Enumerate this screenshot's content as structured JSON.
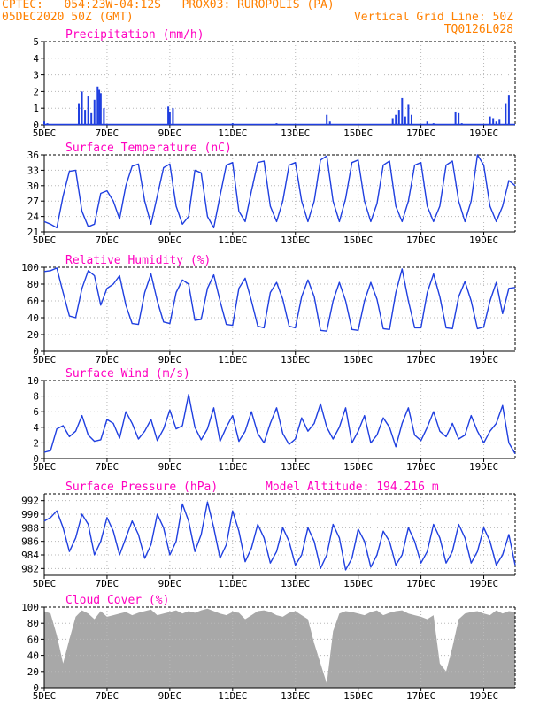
{
  "header": {
    "line1_left": "CPTEC:   054:23W-04:12S   PROX03: RUROPOLIS (PA)",
    "line2_left": "05DEC2020 50Z (GMT)",
    "line2_right": "Vertical Grid Line: 50Z",
    "line3_right": "TQ0126L028"
  },
  "colors": {
    "header": "#ff8000",
    "panel_title": "#ff00c0",
    "series": "#1f3fe0",
    "cloud_fill": "#a8a8a8",
    "grid": "#b8b8b8"
  },
  "x_axis": {
    "tick_labels": [
      "5DEC",
      "7DEC",
      "9DEC",
      "11DEC",
      "13DEC",
      "15DEC",
      "17DEC",
      "19DEC"
    ],
    "tick_days": [
      5,
      7,
      9,
      11,
      13,
      15,
      17,
      19
    ],
    "range_days": [
      5,
      20
    ]
  },
  "chart_data": [
    {
      "type": "bar",
      "title": "Precipitation (mm/h)",
      "ylim": [
        0,
        5
      ],
      "yticks": [
        0,
        1,
        2,
        3,
        4,
        5
      ],
      "x_days": [
        5.0,
        5.1,
        6.1,
        6.2,
        6.3,
        6.4,
        6.5,
        6.6,
        6.7,
        6.75,
        6.8,
        6.9,
        8.95,
        9.0,
        9.1,
        11.0,
        12.4,
        14.0,
        14.1,
        16.1,
        16.2,
        16.3,
        16.4,
        16.5,
        16.6,
        16.7,
        17.2,
        17.4,
        18.1,
        18.2,
        18.3,
        19.2,
        19.3,
        19.4,
        19.5,
        19.7,
        19.8
      ],
      "values": [
        0.2,
        0.1,
        1.3,
        2.0,
        0.9,
        1.7,
        0.7,
        1.5,
        2.3,
        2.1,
        1.9,
        1.0,
        1.1,
        0.8,
        1.0,
        0.1,
        0.1,
        0.6,
        0.2,
        0.4,
        0.6,
        0.9,
        1.6,
        0.5,
        1.2,
        0.6,
        0.2,
        0.1,
        0.8,
        0.7,
        0.1,
        0.5,
        0.4,
        0.2,
        0.3,
        1.3,
        1.8
      ]
    },
    {
      "type": "line",
      "title": "Surface Temperature (nC)",
      "ylim": [
        21,
        36
      ],
      "yticks": [
        21,
        24,
        27,
        30,
        33,
        36
      ],
      "x_days": [
        5.0,
        5.2,
        5.4,
        5.6,
        5.8,
        6.0,
        6.2,
        6.4,
        6.6,
        6.8,
        7.0,
        7.2,
        7.4,
        7.6,
        7.8,
        8.0,
        8.2,
        8.4,
        8.6,
        8.8,
        9.0,
        9.2,
        9.4,
        9.6,
        9.8,
        10.0,
        10.2,
        10.4,
        10.6,
        10.8,
        11.0,
        11.2,
        11.4,
        11.6,
        11.8,
        12.0,
        12.2,
        12.4,
        12.6,
        12.8,
        13.0,
        13.2,
        13.4,
        13.6,
        13.8,
        14.0,
        14.2,
        14.4,
        14.6,
        14.8,
        15.0,
        15.2,
        15.4,
        15.6,
        15.8,
        16.0,
        16.2,
        16.4,
        16.6,
        16.8,
        17.0,
        17.2,
        17.4,
        17.6,
        17.8,
        18.0,
        18.2,
        18.4,
        18.6,
        18.8,
        19.0,
        19.2,
        19.4,
        19.6,
        19.8,
        20.0
      ],
      "values": [
        23.0,
        22.5,
        21.8,
        28.0,
        32.8,
        33.0,
        25.0,
        22.0,
        22.5,
        28.5,
        29.0,
        27.0,
        23.5,
        30.0,
        33.8,
        34.2,
        27.0,
        22.5,
        28.0,
        33.5,
        34.2,
        26.0,
        22.5,
        24.0,
        33.0,
        32.5,
        24.0,
        21.8,
        28.0,
        34.0,
        34.5,
        25.0,
        23.0,
        29.0,
        34.5,
        34.8,
        26.0,
        23.0,
        27.0,
        34.0,
        34.5,
        27.0,
        23.0,
        27.0,
        35.0,
        35.8,
        27.0,
        23.0,
        27.5,
        34.5,
        35.0,
        27.0,
        23.0,
        26.5,
        34.0,
        34.8,
        26.0,
        23.0,
        27.0,
        34.0,
        34.5,
        26.0,
        23.0,
        26.0,
        34.0,
        34.8,
        27.0,
        23.0,
        27.0,
        36.0,
        34.0,
        26.0,
        23.0,
        26.0,
        31.0,
        30.0
      ]
    },
    {
      "type": "line",
      "title": "Relative Humidity (%)",
      "ylim": [
        0,
        100
      ],
      "yticks": [
        0,
        20,
        40,
        60,
        80,
        100
      ],
      "x_days": [
        5.0,
        5.2,
        5.4,
        5.6,
        5.8,
        6.0,
        6.2,
        6.4,
        6.6,
        6.8,
        7.0,
        7.2,
        7.4,
        7.6,
        7.8,
        8.0,
        8.2,
        8.4,
        8.6,
        8.8,
        9.0,
        9.2,
        9.4,
        9.6,
        9.8,
        10.0,
        10.2,
        10.4,
        10.6,
        10.8,
        11.0,
        11.2,
        11.4,
        11.6,
        11.8,
        12.0,
        12.2,
        12.4,
        12.6,
        12.8,
        13.0,
        13.2,
        13.4,
        13.6,
        13.8,
        14.0,
        14.2,
        14.4,
        14.6,
        14.8,
        15.0,
        15.2,
        15.4,
        15.6,
        15.8,
        16.0,
        16.2,
        16.4,
        16.6,
        16.8,
        17.0,
        17.2,
        17.4,
        17.6,
        17.8,
        18.0,
        18.2,
        18.4,
        18.6,
        18.8,
        19.0,
        19.2,
        19.4,
        19.6,
        19.8,
        20.0
      ],
      "values": [
        95.0,
        96.0,
        99.0,
        70.0,
        42.0,
        40.0,
        75.0,
        96.0,
        90.0,
        55.0,
        75.0,
        80.0,
        90.0,
        55.0,
        33.0,
        32.0,
        70.0,
        92.0,
        60.0,
        35.0,
        33.0,
        70.0,
        85.0,
        80.0,
        37.0,
        38.0,
        75.0,
        91.0,
        60.0,
        32.0,
        31.0,
        75.0,
        87.0,
        60.0,
        30.0,
        28.0,
        70.0,
        82.0,
        62.0,
        30.0,
        28.0,
        65.0,
        85.0,
        65.0,
        25.0,
        24.0,
        60.0,
        82.0,
        60.0,
        26.0,
        25.0,
        60.0,
        82.0,
        62.0,
        27.0,
        26.0,
        70.0,
        98.0,
        60.0,
        28.0,
        28.0,
        70.0,
        92.0,
        65.0,
        28.0,
        27.0,
        65.0,
        83.0,
        60.0,
        27.0,
        29.0,
        60.0,
        82.0,
        45.0,
        75.0,
        76.0
      ]
    },
    {
      "type": "line",
      "title": "Surface Wind (m/s)",
      "ylim": [
        0,
        10
      ],
      "yticks": [
        0,
        2,
        4,
        6,
        8,
        10
      ],
      "x_days": [
        5.0,
        5.2,
        5.4,
        5.6,
        5.8,
        6.0,
        6.2,
        6.4,
        6.6,
        6.8,
        7.0,
        7.2,
        7.4,
        7.6,
        7.8,
        8.0,
        8.2,
        8.4,
        8.6,
        8.8,
        9.0,
        9.2,
        9.4,
        9.6,
        9.8,
        10.0,
        10.2,
        10.4,
        10.6,
        10.8,
        11.0,
        11.2,
        11.4,
        11.6,
        11.8,
        12.0,
        12.2,
        12.4,
        12.6,
        12.8,
        13.0,
        13.2,
        13.4,
        13.6,
        13.8,
        14.0,
        14.2,
        14.4,
        14.6,
        14.8,
        15.0,
        15.2,
        15.4,
        15.6,
        15.8,
        16.0,
        16.2,
        16.4,
        16.6,
        16.8,
        17.0,
        17.2,
        17.4,
        17.6,
        17.8,
        18.0,
        18.2,
        18.4,
        18.6,
        18.8,
        19.0,
        19.2,
        19.4,
        19.6,
        19.8,
        20.0
      ],
      "values": [
        0.8,
        1.0,
        3.8,
        4.2,
        2.8,
        3.5,
        5.5,
        3.0,
        2.2,
        2.4,
        5.0,
        4.5,
        2.6,
        6.0,
        4.5,
        2.5,
        3.5,
        5.0,
        2.3,
        3.8,
        6.2,
        3.8,
        4.2,
        8.2,
        4.0,
        2.4,
        3.8,
        6.5,
        2.2,
        4.0,
        5.5,
        2.2,
        3.5,
        6.0,
        3.2,
        2.0,
        4.5,
        6.5,
        3.2,
        1.8,
        2.5,
        5.2,
        3.5,
        4.5,
        7.0,
        4.0,
        2.5,
        4.0,
        6.5,
        2.0,
        3.5,
        5.5,
        2.0,
        3.0,
        5.2,
        4.0,
        1.5,
        4.5,
        6.5,
        3.0,
        2.3,
        4.0,
        6.0,
        3.5,
        2.8,
        4.5,
        2.5,
        3.0,
        5.5,
        3.5,
        2.0,
        3.5,
        4.5,
        6.8,
        2.0,
        0.6
      ]
    },
    {
      "type": "line",
      "title": "Surface Pressure (hPa)",
      "ylim": [
        981,
        993
      ],
      "yticks": [
        982,
        984,
        986,
        988,
        990,
        992
      ],
      "annotation": "Model Altitude: 194.216 m",
      "x_days": [
        5.0,
        5.2,
        5.4,
        5.6,
        5.8,
        6.0,
        6.2,
        6.4,
        6.6,
        6.8,
        7.0,
        7.2,
        7.4,
        7.6,
        7.8,
        8.0,
        8.2,
        8.4,
        8.6,
        8.8,
        9.0,
        9.2,
        9.4,
        9.6,
        9.8,
        10.0,
        10.2,
        10.4,
        10.6,
        10.8,
        11.0,
        11.2,
        11.4,
        11.6,
        11.8,
        12.0,
        12.2,
        12.4,
        12.6,
        12.8,
        13.0,
        13.2,
        13.4,
        13.6,
        13.8,
        14.0,
        14.2,
        14.4,
        14.6,
        14.8,
        15.0,
        15.2,
        15.4,
        15.6,
        15.8,
        16.0,
        16.2,
        16.4,
        16.6,
        16.8,
        17.0,
        17.2,
        17.4,
        17.6,
        17.8,
        18.0,
        18.2,
        18.4,
        18.6,
        18.8,
        19.0,
        19.2,
        19.4,
        19.6,
        19.8,
        20.0
      ],
      "values": [
        989.0,
        989.5,
        990.5,
        988.0,
        984.5,
        986.5,
        990.0,
        988.5,
        984.0,
        986.0,
        989.5,
        987.5,
        984.0,
        986.5,
        989.0,
        987.0,
        983.5,
        985.5,
        990.0,
        988.0,
        984.0,
        986.0,
        991.5,
        989.0,
        984.5,
        987.0,
        991.8,
        988.0,
        983.5,
        985.5,
        990.5,
        987.5,
        983.0,
        985.0,
        988.5,
        986.5,
        982.8,
        984.5,
        988.0,
        986.0,
        982.5,
        984.0,
        988.0,
        986.0,
        982.0,
        984.0,
        988.5,
        986.5,
        981.8,
        983.5,
        987.8,
        986.0,
        982.2,
        984.0,
        987.5,
        986.0,
        982.5,
        984.0,
        988.0,
        986.0,
        982.8,
        984.5,
        988.5,
        986.5,
        982.8,
        984.5,
        988.5,
        986.5,
        982.8,
        984.5,
        988.0,
        986.0,
        982.5,
        984.0,
        987.0,
        982.5
      ]
    },
    {
      "type": "area",
      "title": "Cloud Cover (%)",
      "ylim": [
        0,
        100
      ],
      "yticks": [
        0,
        20,
        40,
        60,
        80,
        100
      ],
      "x_days": [
        5.0,
        5.2,
        5.4,
        5.6,
        5.8,
        6.0,
        6.2,
        6.4,
        6.6,
        6.8,
        7.0,
        7.2,
        7.4,
        7.6,
        7.8,
        8.0,
        8.2,
        8.4,
        8.6,
        8.8,
        9.0,
        9.2,
        9.4,
        9.6,
        9.8,
        10.0,
        10.2,
        10.4,
        10.6,
        10.8,
        11.0,
        11.2,
        11.4,
        11.6,
        11.8,
        12.0,
        12.2,
        12.4,
        12.6,
        12.8,
        13.0,
        13.2,
        13.4,
        13.6,
        13.8,
        14.0,
        14.2,
        14.4,
        14.6,
        14.8,
        15.0,
        15.2,
        15.4,
        15.6,
        15.8,
        16.0,
        16.2,
        16.4,
        16.6,
        16.8,
        17.0,
        17.2,
        17.4,
        17.6,
        17.8,
        18.0,
        18.2,
        18.4,
        18.6,
        18.8,
        19.0,
        19.2,
        19.4,
        19.6,
        19.8,
        20.0
      ],
      "values": [
        95,
        92,
        65,
        30,
        60,
        88,
        96,
        92,
        85,
        95,
        88,
        90,
        92,
        94,
        90,
        93,
        95,
        97,
        90,
        92,
        94,
        96,
        92,
        95,
        93,
        96,
        98,
        95,
        92,
        90,
        94,
        93,
        85,
        90,
        95,
        96,
        94,
        90,
        88,
        93,
        95,
        90,
        85,
        55,
        30,
        5,
        70,
        92,
        95,
        94,
        92,
        90,
        94,
        96,
        90,
        93,
        95,
        96,
        92,
        90,
        88,
        85,
        90,
        30,
        20,
        50,
        85,
        92,
        94,
        95,
        92,
        90,
        96,
        92,
        95,
        94
      ]
    }
  ]
}
